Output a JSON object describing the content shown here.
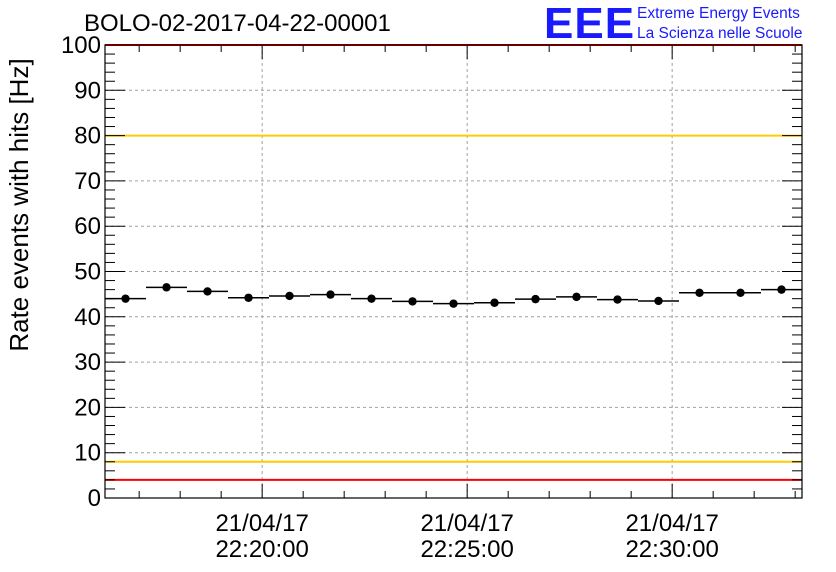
{
  "header": {
    "run_title": "BOLO-02-2017-04-22-00001"
  },
  "logo": {
    "mark": "EEE",
    "line1": "Extreme Energy Events",
    "line2": "La Scienza nelle Scuole",
    "color": "#1a1aff"
  },
  "chart_data": {
    "type": "scatter",
    "title": "",
    "ylabel": "Rate events with hits [Hz]",
    "xlabel": "",
    "ylim": [
      0,
      100
    ],
    "y_ticks": [
      "0",
      "10",
      "20",
      "30",
      "40",
      "50",
      "60",
      "70",
      "80",
      "90",
      "100"
    ],
    "x_ticks": [
      {
        "date": "21/04/17",
        "time": "22:20:00"
      },
      {
        "date": "21/04/17",
        "time": "22:25:00"
      },
      {
        "date": "21/04/17",
        "time": "22:30:00"
      }
    ],
    "x_range": [
      "21/04/17 22:16:10",
      "21/04/17 22:33:10"
    ],
    "grid": true,
    "series": [
      {
        "marker": "circle",
        "bin_width_s": 60,
        "points": [
          {
            "t": "22:16:40",
            "y": 44.0
          },
          {
            "t": "22:17:40",
            "y": 46.5
          },
          {
            "t": "22:18:40",
            "y": 45.6
          },
          {
            "t": "22:19:40",
            "y": 44.2
          },
          {
            "t": "22:20:40",
            "y": 44.6
          },
          {
            "t": "22:21:40",
            "y": 44.9
          },
          {
            "t": "22:22:40",
            "y": 44.0
          },
          {
            "t": "22:23:40",
            "y": 43.4
          },
          {
            "t": "22:24:40",
            "y": 42.9
          },
          {
            "t": "22:25:40",
            "y": 43.1
          },
          {
            "t": "22:26:40",
            "y": 43.9
          },
          {
            "t": "22:27:40",
            "y": 44.4
          },
          {
            "t": "22:28:40",
            "y": 43.8
          },
          {
            "t": "22:29:40",
            "y": 43.5
          },
          {
            "t": "22:30:40",
            "y": 45.3
          },
          {
            "t": "22:31:40",
            "y": 45.3
          },
          {
            "t": "22:32:40",
            "y": 46.0
          }
        ]
      }
    ],
    "reference_lines": [
      {
        "y": 100,
        "color": "#ff0000"
      },
      {
        "y": 80,
        "color": "#ffcc00"
      },
      {
        "y": 8,
        "color": "#ffcc00"
      },
      {
        "y": 4,
        "color": "#ff0000"
      }
    ]
  }
}
